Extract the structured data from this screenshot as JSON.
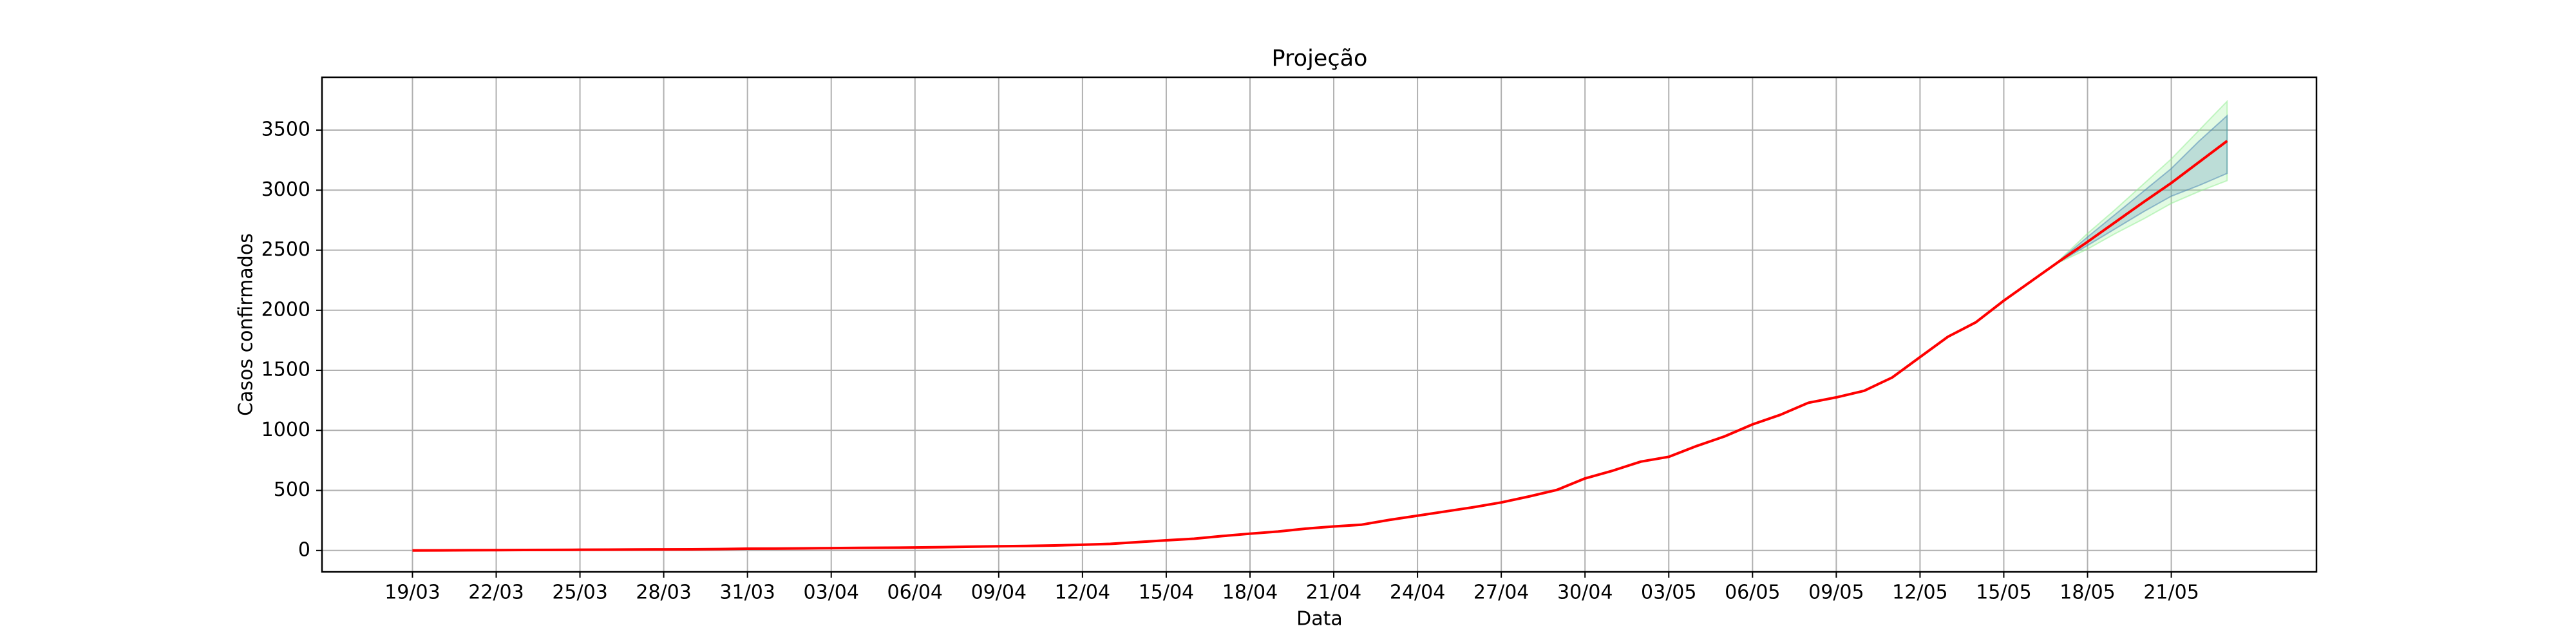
{
  "chart_data": {
    "type": "line",
    "title": "Projeção",
    "xlabel": "Data",
    "ylabel": "Casos confirmados",
    "categories": [
      "19/03",
      null,
      null,
      "22/03",
      null,
      null,
      "25/03",
      null,
      null,
      "28/03",
      null,
      null,
      "31/03",
      null,
      null,
      "03/04",
      null,
      null,
      "06/04",
      null,
      null,
      "09/04",
      null,
      null,
      "12/04",
      null,
      null,
      "15/04",
      null,
      null,
      "18/04",
      null,
      null,
      "21/04",
      null,
      null,
      "24/04",
      null,
      null,
      "27/04",
      null,
      null,
      "30/04",
      null,
      null,
      "03/05",
      null,
      null,
      "06/05",
      null,
      null,
      "09/05",
      null,
      null,
      "12/05",
      null,
      null,
      "15/05",
      null,
      null,
      "18/05",
      null,
      null,
      "21/05",
      null,
      null
    ],
    "series": [
      {
        "color": "#ff0000",
        "values": [
          0,
          1,
          2,
          3,
          4,
          5,
          6,
          7,
          8,
          9,
          10,
          12,
          15,
          16,
          18,
          20,
          22,
          23,
          25,
          28,
          32,
          35,
          38,
          42,
          48,
          55,
          70,
          85,
          98,
          120,
          140,
          158,
          182,
          200,
          215,
          255,
          290,
          325,
          360,
          400,
          450,
          505,
          600,
          665,
          740,
          780,
          870,
          950,
          1050,
          1130,
          1230,
          1275,
          1330,
          1440,
          1610,
          1780,
          1900,
          2080,
          2245,
          2410,
          2570,
          2735,
          2900,
          3060,
          3235,
          3410
        ]
      }
    ],
    "bands": [
      {
        "color": "#90ee90",
        "lower": [
          null,
          null,
          null,
          null,
          null,
          null,
          null,
          null,
          null,
          null,
          null,
          null,
          null,
          null,
          null,
          null,
          null,
          null,
          null,
          null,
          null,
          null,
          null,
          null,
          null,
          null,
          null,
          null,
          null,
          null,
          null,
          null,
          null,
          null,
          null,
          null,
          null,
          null,
          null,
          null,
          null,
          null,
          null,
          null,
          null,
          null,
          null,
          null,
          null,
          null,
          null,
          null,
          null,
          null,
          null,
          null,
          null,
          null,
          null,
          2400,
          2510,
          2640,
          2760,
          2890,
          2990,
          3080
        ],
        "upper": [
          null,
          null,
          null,
          null,
          null,
          null,
          null,
          null,
          null,
          null,
          null,
          null,
          null,
          null,
          null,
          null,
          null,
          null,
          null,
          null,
          null,
          null,
          null,
          null,
          null,
          null,
          null,
          null,
          null,
          null,
          null,
          null,
          null,
          null,
          null,
          null,
          null,
          null,
          null,
          null,
          null,
          null,
          null,
          null,
          null,
          null,
          null,
          null,
          null,
          null,
          null,
          null,
          null,
          null,
          null,
          null,
          null,
          null,
          null,
          2420,
          2640,
          2840,
          3050,
          3260,
          3500,
          3740
        ]
      },
      {
        "color": "#4682b4",
        "lower": [
          null,
          null,
          null,
          null,
          null,
          null,
          null,
          null,
          null,
          null,
          null,
          null,
          null,
          null,
          null,
          null,
          null,
          null,
          null,
          null,
          null,
          null,
          null,
          null,
          null,
          null,
          null,
          null,
          null,
          null,
          null,
          null,
          null,
          null,
          null,
          null,
          null,
          null,
          null,
          null,
          null,
          null,
          null,
          null,
          null,
          null,
          null,
          null,
          null,
          null,
          null,
          null,
          null,
          null,
          null,
          null,
          null,
          null,
          null,
          2405,
          2540,
          2680,
          2820,
          2950,
          3040,
          3140
        ],
        "upper": [
          null,
          null,
          null,
          null,
          null,
          null,
          null,
          null,
          null,
          null,
          null,
          null,
          null,
          null,
          null,
          null,
          null,
          null,
          null,
          null,
          null,
          null,
          null,
          null,
          null,
          null,
          null,
          null,
          null,
          null,
          null,
          null,
          null,
          null,
          null,
          null,
          null,
          null,
          null,
          null,
          null,
          null,
          null,
          null,
          null,
          null,
          null,
          null,
          null,
          null,
          null,
          null,
          null,
          null,
          null,
          null,
          null,
          null,
          null,
          2415,
          2610,
          2800,
          2990,
          3180,
          3410,
          3620
        ]
      }
    ],
    "ylim": [
      -178,
      3940
    ],
    "yticks": [
      0,
      500,
      1000,
      1500,
      2000,
      2500,
      3000,
      3500
    ],
    "grid": true
  }
}
